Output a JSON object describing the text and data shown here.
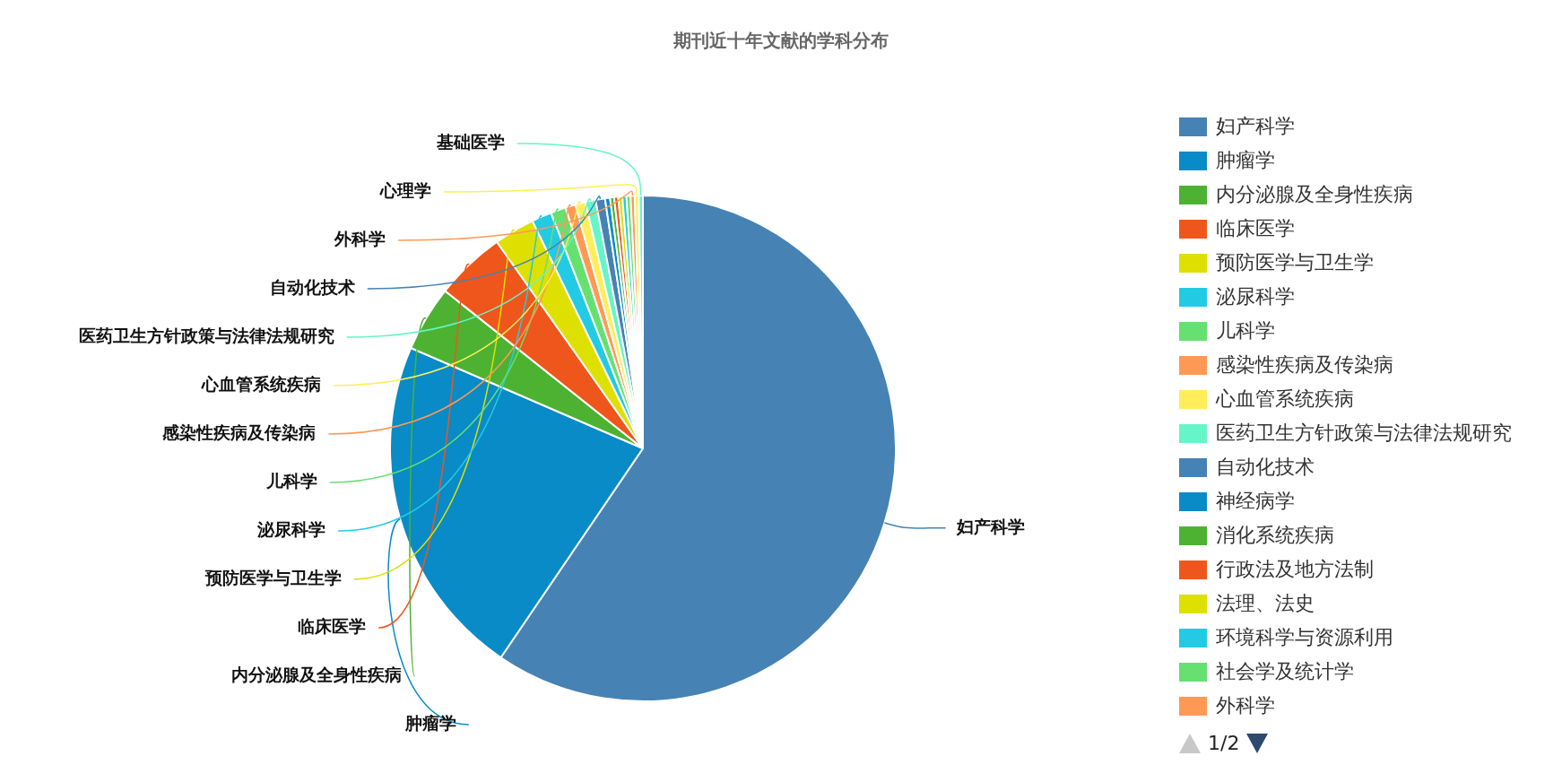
{
  "chart_data": {
    "type": "pie",
    "title": "期刊近十年文献的学科分布",
    "categories": [
      "妇产科学",
      "肿瘤学",
      "内分泌腺及全身性疾病",
      "临床医学",
      "预防医学与卫生学",
      "泌尿科学",
      "儿科学",
      "感染性疾病及传染病",
      "心血管系统疾病",
      "医药卫生方针政策与法律法规研究",
      "自动化技术",
      "神经病学",
      "消化系统疾病",
      "行政法及地方法制",
      "法理、法史",
      "环境科学与资源利用",
      "社会学及统计学",
      "外科学",
      "心理学",
      "基础医学"
    ],
    "values": [
      59.5,
      22,
      4.2,
      4.5,
      2.6,
      1.28,
      0.97,
      0.65,
      0.65,
      0.65,
      0.6,
      0.32,
      0.26,
      0.26,
      0.26,
      0.26,
      0.26,
      0.26,
      0.26,
      0.26
    ],
    "colors": [
      "#4682b4",
      "#088bc7",
      "#4db232",
      "#ef561c",
      "#dde000",
      "#22cbe3",
      "#66e070",
      "#ff9955",
      "#ffee5a",
      "#66f5c8",
      "#4682b4",
      "#088bc7",
      "#4db232",
      "#ef561c",
      "#dde000",
      "#22cbe3",
      "#66e070",
      "#ff9955",
      "#ffee5a",
      "#66f5c8"
    ],
    "legend": "right",
    "annotations": [
      "1/2"
    ]
  }
}
